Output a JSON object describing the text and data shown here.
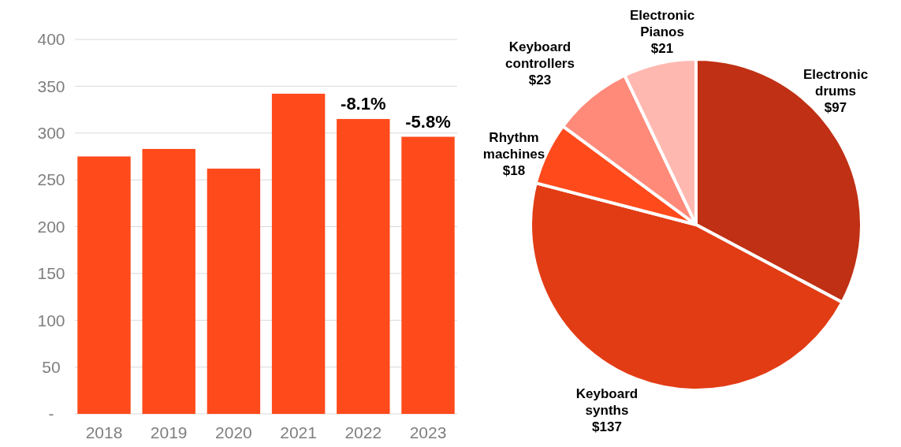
{
  "chart_data": [
    {
      "type": "bar",
      "categories": [
        "2018",
        "2019",
        "2020",
        "2021",
        "2022",
        "2023"
      ],
      "values": [
        275,
        283,
        262,
        342,
        315,
        296
      ],
      "color": "#ff4a1c",
      "ylim": [
        0,
        400
      ],
      "yticks": [
        {
          "value": 0,
          "label": "-"
        },
        50,
        100,
        150,
        200,
        250,
        300,
        350,
        400
      ],
      "grid": "y",
      "annotations": [
        {
          "text": "-8.1%",
          "x": "2022",
          "y": 315
        },
        {
          "text": "-5.8%",
          "x": "2023",
          "y": 296
        }
      ]
    },
    {
      "type": "pie",
      "categories": [
        "Electronic drums",
        "Keyboard synths",
        "Rhythm machines",
        "Keyboard controllers",
        "Electronic Pianos"
      ],
      "values": [
        97,
        137,
        18,
        23,
        21
      ],
      "colors": [
        "#c03014",
        "#e23c15",
        "#ff4a1c",
        "#ff8a7a",
        "#ffb8b0"
      ],
      "value_labels": [
        "$97",
        "$137",
        "$18",
        "$23",
        "$21"
      ]
    }
  ]
}
